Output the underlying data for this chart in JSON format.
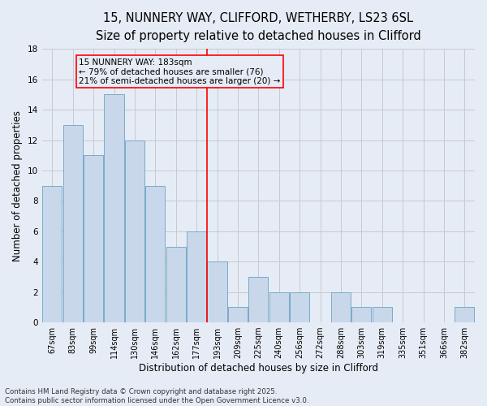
{
  "title_line1": "15, NUNNERY WAY, CLIFFORD, WETHERBY, LS23 6SL",
  "title_line2": "Size of property relative to detached houses in Clifford",
  "xlabel": "Distribution of detached houses by size in Clifford",
  "ylabel": "Number of detached properties",
  "categories": [
    "67sqm",
    "83sqm",
    "99sqm",
    "114sqm",
    "130sqm",
    "146sqm",
    "162sqm",
    "177sqm",
    "193sqm",
    "209sqm",
    "225sqm",
    "240sqm",
    "256sqm",
    "272sqm",
    "288sqm",
    "303sqm",
    "319sqm",
    "335sqm",
    "351sqm",
    "366sqm",
    "382sqm"
  ],
  "values": [
    9,
    13,
    11,
    15,
    12,
    9,
    5,
    6,
    4,
    1,
    3,
    2,
    2,
    0,
    2,
    1,
    1,
    0,
    0,
    0,
    1
  ],
  "bar_color": "#c8d8ea",
  "bar_edge_color": "#7aaac8",
  "grid_color": "#c8c8d0",
  "background_color": "#e6ecf5",
  "vline_x": 7.5,
  "vline_color": "red",
  "annotation_text": "15 NUNNERY WAY: 183sqm\n← 79% of detached houses are smaller (76)\n21% of semi-detached houses are larger (20) →",
  "annotation_box_color": "red",
  "ylim": [
    0,
    18
  ],
  "yticks": [
    0,
    2,
    4,
    6,
    8,
    10,
    12,
    14,
    16,
    18
  ],
  "footer": "Contains HM Land Registry data © Crown copyright and database right 2025.\nContains public sector information licensed under the Open Government Licence v3.0.",
  "title_fontsize": 10.5,
  "subtitle_fontsize": 9.5,
  "axis_label_fontsize": 8.5,
  "tick_fontsize": 7,
  "annotation_fontsize": 7.5,
  "footer_fontsize": 6.2
}
